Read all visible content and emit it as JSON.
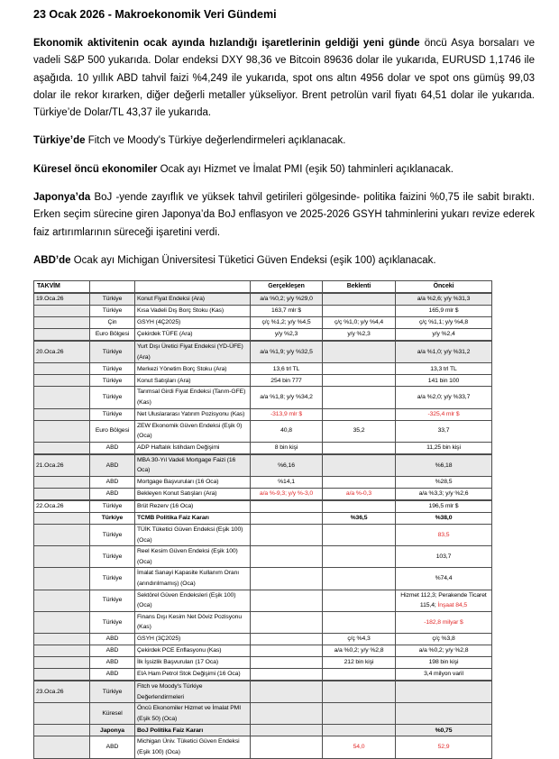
{
  "document": {
    "title": "23 Ocak 2026 - Makroekonomik Veri Gündemi",
    "paragraphs": [
      {
        "lead": "Ekonomik aktivitenin ocak ayında hızlandığı işaretlerinin geldiği yeni günde",
        "rest": " öncü Asya borsaları ve vadeli S&P 500 yukarıda. Dolar endeksi DXY 98,36 ve Bitcoin 89636 dolar ile yukarıda, EURUSD 1,1746 ile aşağıda. 10 yıllık ABD tahvil faizi %4,249 ile yukarıda, spot ons altın 4956 dolar ve spot ons gümüş 99,03 dolar ile rekor kırarken, diğer değerli metaller yükseliyor. Brent petrolün varil fiyatı 64,51 dolar ile yukarıda. Türkiye’de Dolar/TL 43,37 ile yukarıda."
      },
      {
        "lead": "Türkiye’de",
        "rest": " Fitch ve Moody's Türkiye değerlendirmeleri açıklanacak."
      },
      {
        "lead": "Küresel öncü ekonomiler",
        "rest": " Ocak ayı Hizmet ve İmalat PMI (eşik 50) tahminleri açıklanacak."
      },
      {
        "lead": "Japonya’da",
        "rest": " BoJ -yende zayıflık ve yüksek tahvil getirileri gölgesinde- politika faizini %0,75 ile sabit bıraktı. Erken seçim sürecine giren Japonya’da BoJ enflasyon ve 2025-2026 GSYH tahminlerini yukarı revize ederek faiz artırımlarının süreceği işaretini verdi."
      },
      {
        "lead": "ABD’de",
        "rest": " Ocak ayı Michigan Üniversitesi Tüketici Güven Endeksi (eşik 100) açıklanacak."
      }
    ]
  },
  "table": {
    "headers": {
      "calendar": "TAKVİM",
      "country": "",
      "indicator": "",
      "actual": "Gerçekleşen",
      "expected": "Beklenti",
      "previous": "Önceki"
    },
    "rows": [
      {
        "date": "19.Oca.26",
        "country": "Türkiye",
        "indicator": "Konut Fiyat Endeksi (Ara)",
        "actual": "a/a %0,2; y/y %29,0",
        "expected": "",
        "previous": "a/a %2,6; y/y %31,3",
        "shaded": true,
        "thick_top": true
      },
      {
        "date": "",
        "country": "Türkiye",
        "indicator": "Kısa Vadeli Dış Borç Stoku (Kas)",
        "actual": "163,7 mlr $",
        "expected": "",
        "previous": "165,9 mlr $"
      },
      {
        "date": "",
        "country": "Çin",
        "indicator": "GSYH (4Ç2025)",
        "actual": "ç/ç %1,2; y/y %4,5",
        "expected": "ç/ç %1,0; y/y %4,4",
        "previous": "ç/ç %1,1; y/y %4,8"
      },
      {
        "date": "",
        "country": "Euro Bölgesi",
        "indicator": "Çekirdek TÜFE (Ara)",
        "actual": "y/y %2,3",
        "expected": "y/y %2,3",
        "previous": "y/y %2,4"
      },
      {
        "date": "20.Oca.26",
        "country": "Türkiye",
        "indicator": "Yurt Dışı Üretici Fiyat Endeksi (YD-ÜFE) (Ara)",
        "actual": "a/a %1,9; y/y %32,5",
        "expected": "",
        "previous": "a/a %1,0; y/y %31,2",
        "shaded": true,
        "thick_top": true
      },
      {
        "date": "",
        "country": "Türkiye",
        "indicator": "Merkezi Yönetim Borç Stoku (Ara)",
        "actual": "13,6 trl TL",
        "expected": "",
        "previous": "13,3 trl TL"
      },
      {
        "date": "",
        "country": "Türkiye",
        "indicator": "Konut Satışları (Ara)",
        "actual": "254 bin 777",
        "expected": "",
        "previous": "141 bin 100"
      },
      {
        "date": "",
        "country": "Türkiye",
        "indicator": "Tarımsal Girdi Fiyat Endeksi (Tarım-GFE) (Kas)",
        "actual": "a/a %1,8; y/y %34,2",
        "expected": "",
        "previous": "a/a %2,0; y/y %33,7"
      },
      {
        "date": "",
        "country": "Türkiye",
        "indicator": "Net Uluslararası Yatırım Pozisyonu (Kas)",
        "actual": "-313,9 mlr $",
        "expected": "",
        "previous": "-325,4 mlr $",
        "actual_red": true,
        "previous_red": true
      },
      {
        "date": "",
        "country": "Euro Bölgesi",
        "indicator": "ZEW Ekonomik Güven Endeksi (Eşik 0) (Oca)",
        "actual": "40,8",
        "expected": "35,2",
        "previous": "33,7"
      },
      {
        "date": "",
        "country": "ABD",
        "indicator": "ADP Haftalık İstihdam Değişimi",
        "actual": "8 bin kişi",
        "expected": "",
        "previous": "11,25 bin kişi"
      },
      {
        "date": "21.Oca.26",
        "country": "ABD",
        "indicator": "MBA 30-Yıl Vadeli Mortgage Faizi (16 Oca)",
        "actual": "%6,16",
        "expected": "",
        "previous": "%6,18",
        "shaded": true,
        "thick_top": true
      },
      {
        "date": "",
        "country": "ABD",
        "indicator": "Mortgage Başvuruları (16 Oca)",
        "actual": "%14,1",
        "expected": "",
        "previous": "%28,5"
      },
      {
        "date": "",
        "country": "ABD",
        "indicator": "Bekleyen Konut Satışları (Ara)",
        "actual": "a/a %-9,3; y/y %-3,0",
        "expected": "a/a %-0,3",
        "previous": "a/a %3,3; y/y %2,6",
        "actual_red": true,
        "expected_red": true
      },
      {
        "date": "22.Oca.26",
        "country": "Türkiye",
        "indicator": "Brüt Rezerv (16 Oca)",
        "actual": "",
        "expected": "",
        "previous": "196,5 mlr $",
        "thick_top": true
      },
      {
        "date": "",
        "country": "Türkiye",
        "indicator": "TCMB Politika Faiz Kararı",
        "actual": "",
        "expected": "%36,5",
        "previous": "%38,0",
        "bold": true
      },
      {
        "date": "",
        "country": "Türkiye",
        "indicator": "TÜİK Tüketici Güven Endeksi (Eşik 100) (Oca)",
        "actual": "",
        "expected": "",
        "previous": "83,5",
        "previous_red": true
      },
      {
        "date": "",
        "country": "Türkiye",
        "indicator": "Reel Kesim Güven Endeksi (Eşik 100) (Oca)",
        "actual": "",
        "expected": "",
        "previous": "103,7"
      },
      {
        "date": "",
        "country": "Türkiye",
        "indicator": "İmalat Sanayi Kapasite Kullanım Oranı (arındırılmamış) (Oca)",
        "actual": "",
        "expected": "",
        "previous": "%74,4"
      },
      {
        "date": "",
        "country": "Türkiye",
        "indicator": "Sektörel Güven Endeksleri (Eşik 100) (Oca)",
        "actual": "",
        "expected": "",
        "previous": "Hizmet 112,3; Perakende Ticaret 115,4; ",
        "previous_red_tail": "İnşaat 84,5"
      },
      {
        "date": "",
        "country": "Türkiye",
        "indicator": "Finans Dışı Kesim Net Döviz Pozisyonu (Kas)",
        "actual": "",
        "expected": "",
        "previous": "-182,8 milyar $",
        "previous_red": true
      },
      {
        "date": "",
        "country": "ABD",
        "indicator": "GSYH (3Ç2025)",
        "actual": "",
        "expected": "ç/ç %4,3",
        "previous": "ç/ç %3,8"
      },
      {
        "date": "",
        "country": "ABD",
        "indicator": "Çekirdek PCE Enflasyonu (Kas)",
        "actual": "",
        "expected": "a/a %0,2; y/y %2,8",
        "previous": "a/a %0,2; y/y %2,8"
      },
      {
        "date": "",
        "country": "ABD",
        "indicator": "İlk İşsizlik Başvuruları (17 Oca)",
        "actual": "",
        "expected": "212 bin kişi",
        "previous": "198 bin kişi"
      },
      {
        "date": "",
        "country": "ABD",
        "indicator": "EIA Ham Petrol Stok Değişimi (16 Oca)",
        "actual": "",
        "expected": "",
        "previous": "3,4 milyon varil"
      },
      {
        "date": "23.Oca.26",
        "country": "Türkiye",
        "indicator": "Fitch ve Moody's Türkiye Değerlendirmeleri",
        "actual": "",
        "expected": "",
        "previous": "",
        "shaded": true,
        "thick_top": true
      },
      {
        "date": "",
        "country": "Küresel",
        "indicator": "Öncü Ekonomiler Hizmet ve İmalat PMI (Eşik 50) (Oca)",
        "actual": "",
        "expected": "",
        "previous": "",
        "shaded": true
      },
      {
        "date": "",
        "country": "Japonya",
        "indicator": "BoJ Politika Faiz Kararı",
        "actual": "",
        "expected": "",
        "previous": "%0,75",
        "shaded": true,
        "bold": true
      },
      {
        "date": "",
        "country": "ABD",
        "indicator": "Michigan Üniv. Tüketici Güven Endeksi (Eşik 100) (Oca)",
        "actual": "",
        "expected": "54,0",
        "previous": "52,9",
        "expected_red": true,
        "previous_red": true
      }
    ]
  },
  "colors": {
    "negative_value": "#e22a2a",
    "row_shade": "#e9e9e9"
  }
}
